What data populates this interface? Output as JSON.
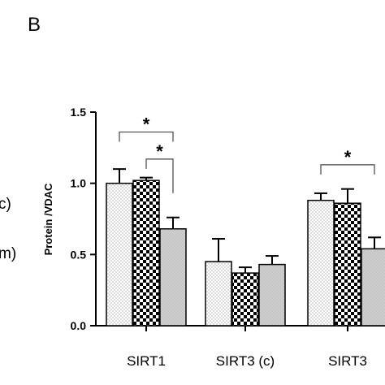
{
  "panel_label": "B",
  "legend_fragments": [
    "c)",
    "m)"
  ],
  "chart_data": {
    "type": "bar",
    "ylabel": "Protein /VDAC",
    "xlabel": "",
    "ylim": [
      0,
      1.5
    ],
    "yticks": [
      "0.0",
      "0.5",
      "1.0",
      "1.5"
    ],
    "categories": [
      "SIRT1",
      "SIRT3 (c)",
      "SIRT3"
    ],
    "series": [
      {
        "pattern": "dots",
        "fill": "#ffffff",
        "values": [
          1.0,
          0.45,
          0.88
        ],
        "errors": [
          0.1,
          0.16,
          0.05
        ]
      },
      {
        "pattern": "checker",
        "fill": "#000000",
        "values": [
          1.02,
          0.37,
          0.86
        ],
        "errors": [
          0.02,
          0.04,
          0.1
        ]
      },
      {
        "pattern": "gray",
        "fill": "#cfcfcf",
        "values": [
          0.68,
          0.43,
          0.54
        ],
        "errors": [
          0.08,
          0.06,
          0.08
        ]
      }
    ],
    "significance": [
      {
        "group": 0,
        "from": 0,
        "to": 2,
        "label": "*"
      },
      {
        "group": 0,
        "from": 1,
        "to": 2,
        "label": "*"
      },
      {
        "group": 2,
        "from": 0,
        "to": 2,
        "label": "*"
      }
    ]
  }
}
